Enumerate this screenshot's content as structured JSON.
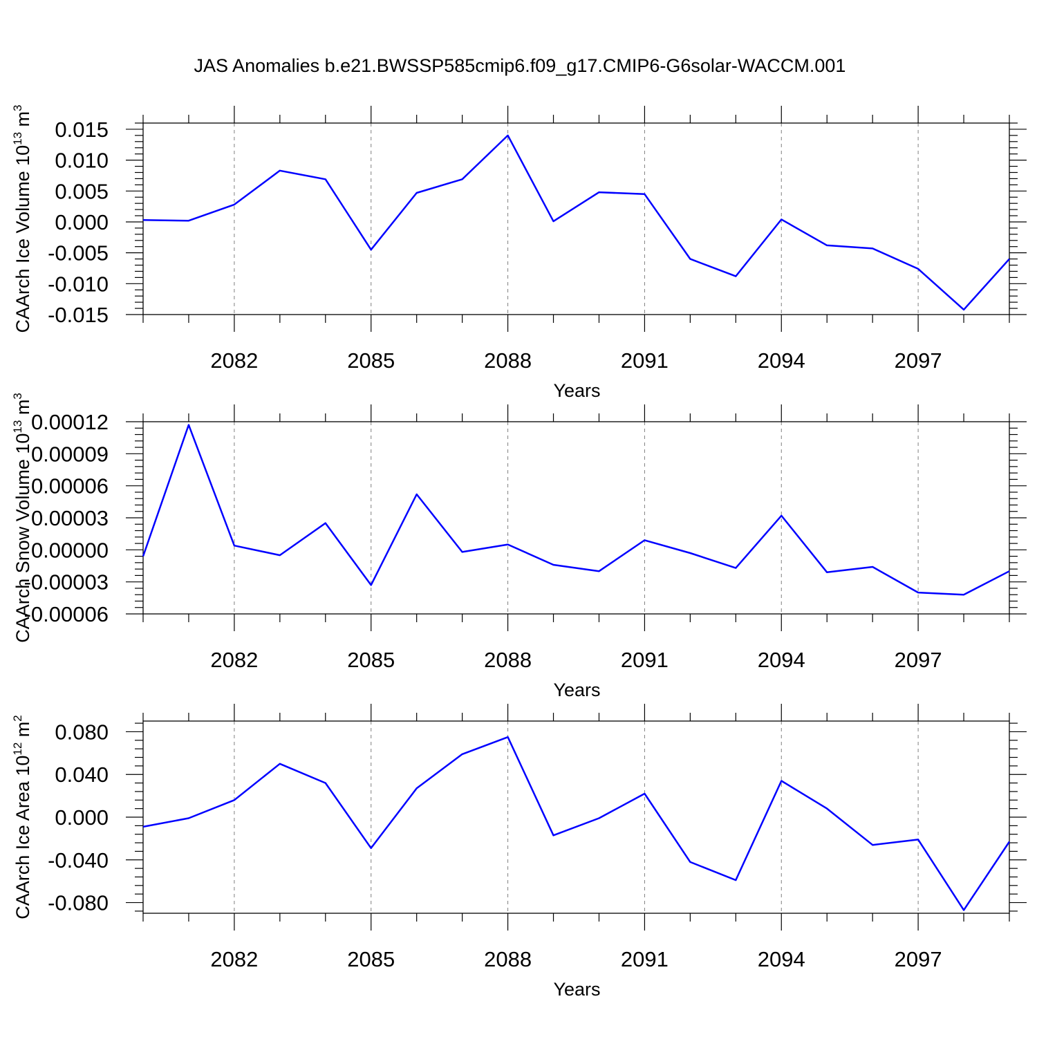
{
  "title": "JAS Anomalies b.e21.BWSSP585cmip6.f09_g17.CMIP6-G6solar-WACCM.001",
  "colors": {
    "line": "#0000ff",
    "axis": "#000000",
    "grid": "#7f7f7f"
  },
  "chart_data": [
    {
      "type": "line",
      "ylabel": {
        "main": "CAArch Ice Volume 10",
        "sup": "13",
        "unit": " m",
        "unit_sup": "3"
      },
      "xlabel": "Years",
      "x": [
        2080,
        2081,
        2082,
        2083,
        2084,
        2085,
        2086,
        2087,
        2088,
        2089,
        2090,
        2091,
        2092,
        2093,
        2094,
        2095,
        2096,
        2097,
        2098,
        2099
      ],
      "xlim": [
        2080,
        2099
      ],
      "xticks": [
        2082,
        2085,
        2088,
        2091,
        2094,
        2097
      ],
      "xtick_labels": [
        "2082",
        "2085",
        "2088",
        "2091",
        "2094",
        "2097"
      ],
      "ylim": [
        -0.015,
        0.016
      ],
      "yticks": [
        -0.015,
        -0.01,
        -0.005,
        0,
        0.005,
        0.01,
        0.015
      ],
      "ytick_labels": [
        "-0.015",
        "-0.010",
        "-0.005",
        "0.000",
        "0.005",
        "0.010",
        "0.015"
      ],
      "grid": "vertical dashed at labeled years",
      "series": [
        {
          "values": [
            0.0003,
            0.0002,
            0.0028,
            0.0083,
            0.0069,
            -0.0045,
            0.0047,
            0.0069,
            0.014,
            0.0001,
            0.0048,
            0.0045,
            -0.006,
            -0.0088,
            0.0004,
            -0.0038,
            -0.0043,
            -0.0076,
            -0.0142,
            -0.006
          ]
        }
      ]
    },
    {
      "type": "line",
      "ylabel": {
        "main": "CAArch Snow Volume 10",
        "sup": "13",
        "unit": " m",
        "unit_sup": "3"
      },
      "xlabel": "Years",
      "x": [
        2080,
        2081,
        2082,
        2083,
        2084,
        2085,
        2086,
        2087,
        2088,
        2089,
        2090,
        2091,
        2092,
        2093,
        2094,
        2095,
        2096,
        2097,
        2098,
        2099
      ],
      "xlim": [
        2080,
        2099
      ],
      "xticks": [
        2082,
        2085,
        2088,
        2091,
        2094,
        2097
      ],
      "xtick_labels": [
        "2082",
        "2085",
        "2088",
        "2091",
        "2094",
        "2097"
      ],
      "ylim": [
        -6e-05,
        0.00012
      ],
      "yticks": [
        -6e-05,
        -3e-05,
        0,
        3e-05,
        6e-05,
        9e-05,
        0.00012
      ],
      "ytick_labels": [
        "-0.00006",
        "-0.00003",
        "0.00000",
        "0.00003",
        "0.00006",
        "0.00009",
        "0.00012"
      ],
      "grid": "vertical dashed at labeled years",
      "series": [
        {
          "values": [
            -6e-06,
            0.000117,
            4e-06,
            -5e-06,
            2.5e-05,
            -3.3e-05,
            5.2e-05,
            -2e-06,
            5e-06,
            -1.4e-05,
            -2e-05,
            9e-06,
            -3e-06,
            -1.7e-05,
            3.2e-05,
            -2.1e-05,
            -1.6e-05,
            -4e-05,
            -4.2e-05,
            -2e-05
          ]
        }
      ]
    },
    {
      "type": "line",
      "ylabel": {
        "main": "CAArch Ice Area 10",
        "sup": "12",
        "unit": " m",
        "unit_sup": "2"
      },
      "xlabel": "Years",
      "x": [
        2080,
        2081,
        2082,
        2083,
        2084,
        2085,
        2086,
        2087,
        2088,
        2089,
        2090,
        2091,
        2092,
        2093,
        2094,
        2095,
        2096,
        2097,
        2098,
        2099
      ],
      "xlim": [
        2080,
        2099
      ],
      "xticks": [
        2082,
        2085,
        2088,
        2091,
        2094,
        2097
      ],
      "xtick_labels": [
        "2082",
        "2085",
        "2088",
        "2091",
        "2094",
        "2097"
      ],
      "ylim": [
        -0.09,
        0.09
      ],
      "yticks": [
        -0.08,
        -0.04,
        0,
        0.04,
        0.08
      ],
      "ytick_labels": [
        "-0.080",
        "-0.040",
        "0.000",
        "0.040",
        "0.080"
      ],
      "grid": "vertical dashed at labeled years",
      "series": [
        {
          "values": [
            -0.009,
            -0.001,
            0.016,
            0.05,
            0.032,
            -0.029,
            0.027,
            0.059,
            0.075,
            -0.017,
            -0.001,
            0.022,
            -0.042,
            -0.059,
            0.034,
            0.008,
            -0.026,
            -0.021,
            -0.087,
            -0.023
          ]
        }
      ]
    }
  ]
}
